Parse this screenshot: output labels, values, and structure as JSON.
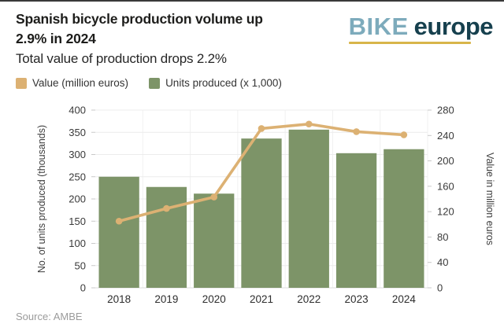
{
  "header": {
    "title_line1": "Spanish bicycle production volume up",
    "title_line2": "2.9% in 2024",
    "title": "Spanish bicycle production volume up 2.9% in 2024",
    "subtitle": "Total value of production drops 2.2%"
  },
  "logo": {
    "word1": "BIKE",
    "word2": "europe",
    "word1_color": "#7dabbc",
    "word2_color": "#16404e",
    "underline_color": "#d8b54a"
  },
  "legend": [
    {
      "label": "Value (million euros)",
      "color": "#dcb173"
    },
    {
      "label": "Units produced (x 1,000)",
      "color": "#7d9468"
    }
  ],
  "chart_data": {
    "type": "bar",
    "title": "Spanish bicycle production volume up 2.9% in 2024",
    "subtitle": "Total value of production drops 2.2%",
    "categories": [
      "2018",
      "2019",
      "2020",
      "2021",
      "2022",
      "2023",
      "2024"
    ],
    "series": [
      {
        "name": "Units produced (x 1,000)",
        "type": "bar",
        "axis": "left",
        "color": "#7d9468",
        "values": [
          250,
          227,
          212,
          336,
          356,
          303,
          312
        ]
      },
      {
        "name": "Value (million euros)",
        "type": "line",
        "axis": "right",
        "color": "#dcb173",
        "values": [
          105,
          125,
          143,
          251,
          258,
          246,
          241
        ]
      }
    ],
    "left_axis": {
      "label": "No. of units produced (thousands)",
      "min": 0,
      "max": 400,
      "ticks": [
        0,
        50,
        100,
        150,
        200,
        250,
        300,
        350,
        400
      ]
    },
    "right_axis": {
      "label": "Value in million euros",
      "min": 0,
      "max": 280,
      "ticks": [
        0,
        40,
        80,
        120,
        160,
        200,
        240,
        280
      ]
    },
    "grid": true,
    "legend_position": "top-left"
  },
  "source": "Source: AMBE"
}
